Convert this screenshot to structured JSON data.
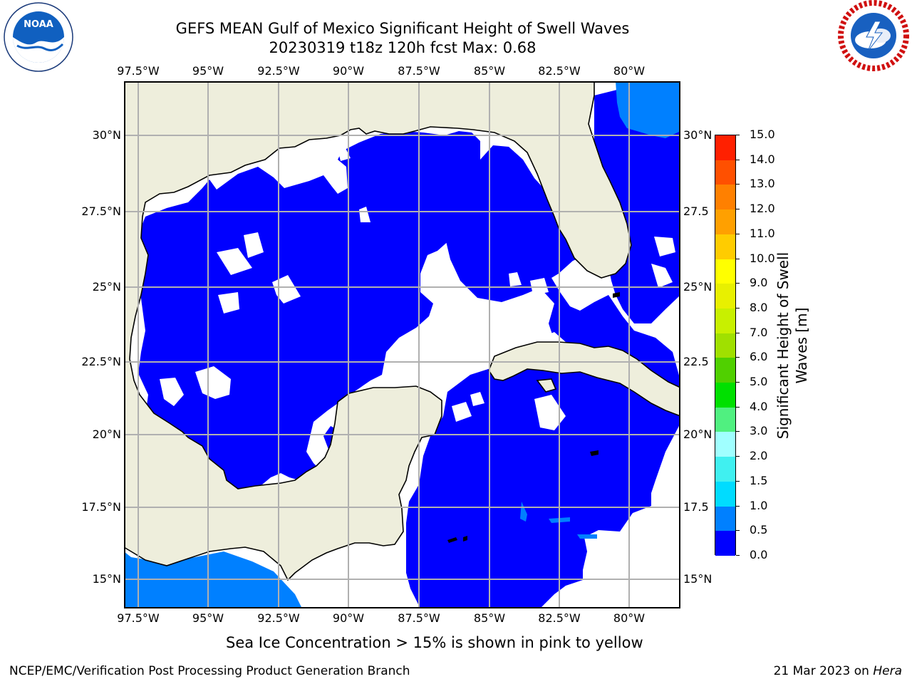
{
  "header": {
    "title_line1": "GEFS MEAN Gulf of Mexico Significant Height of Swell Waves",
    "title_line2": "20230319 t18z 120h fcst   Max: 0.68"
  },
  "logos": {
    "left": {
      "name": "noaa-logo",
      "text": "NOAA",
      "ring_text": "NATIONAL OCEANIC AND ATMOSPHERIC ADMINISTRATION · U.S. DEPARTMENT OF COMMERCE"
    },
    "right": {
      "name": "nws-logo",
      "ring_text": "NATIONAL WEATHER SERVICE"
    }
  },
  "map": {
    "lon_ticks": [
      "97.5°W",
      "95°W",
      "92.5°W",
      "90°W",
      "87.5°W",
      "85°W",
      "82.5°W",
      "80°W"
    ],
    "lat_ticks_left": [
      "30°N",
      "27.5°N",
      "25°N",
      "22.5°N",
      "20°N",
      "17.5°N",
      "15°N"
    ],
    "lat_ticks_right": [
      "30°N",
      "27.5",
      "25°N",
      "22.5",
      "20°N",
      "17.5",
      "15°N"
    ],
    "colors": {
      "land": "#eeeedc",
      "ocean_low": "#0000ff",
      "ocean_mid": "#0080ff",
      "calm": "#ffffff",
      "grid": "#b0b0b0"
    }
  },
  "colorbar": {
    "levels": [
      "0.0",
      "0.5",
      "1.0",
      "1.5",
      "2.0",
      "3.0",
      "4.0",
      "5.0",
      "6.0",
      "7.0",
      "8.0",
      "9.0",
      "10.0",
      "11.0",
      "12.0",
      "13.0",
      "14.0",
      "15.0"
    ],
    "colors": [
      "#0000ff",
      "#0080ff",
      "#00dcff",
      "#40f0f0",
      "#a0ffff",
      "#50f080",
      "#00e000",
      "#50d000",
      "#a0e000",
      "#c8f000",
      "#e8f000",
      "#ffff00",
      "#ffcc00",
      "#ffa000",
      "#ff8000",
      "#ff5000",
      "#ff2000"
    ],
    "label": "Significant Height of Swell Waves [m]"
  },
  "notes": {
    "sea_ice": "Sea Ice Concentration > 15% is shown in pink to yellow"
  },
  "footer": {
    "left": "NCEP/EMC/Verification Post Processing Product Generation Branch",
    "right_date": "21 Mar 2023 on ",
    "right_host": "Hera"
  }
}
